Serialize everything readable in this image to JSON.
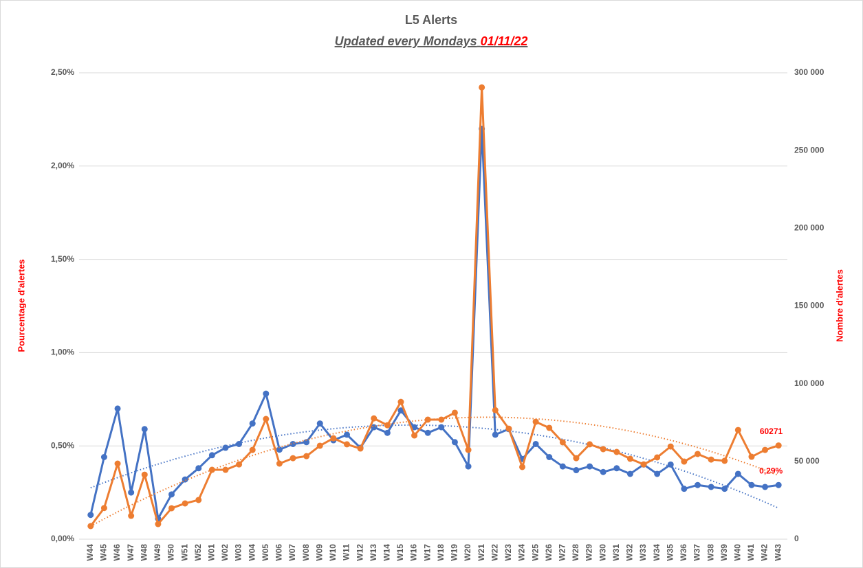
{
  "chart_data": {
    "type": "line",
    "title": "L5 Alerts",
    "subtitle": "Updated every Mondays",
    "subtitle_date": "01/11/22",
    "ylabel": "Pourcentage d'alertes",
    "y2label": "Nombre d'alertes",
    "categories": [
      "W44",
      "W45",
      "W46",
      "W47",
      "W48",
      "W49",
      "W50",
      "W51",
      "W52",
      "W01",
      "W02",
      "W03",
      "W04",
      "W05",
      "W06",
      "W07",
      "W08",
      "W09",
      "W10",
      "W11",
      "W12",
      "W13",
      "W14",
      "W15",
      "W16",
      "W17",
      "W18",
      "W19",
      "W20",
      "W21",
      "W22",
      "W23",
      "W24",
      "W25",
      "W26",
      "W27",
      "W28",
      "W29",
      "W30",
      "W31",
      "W32",
      "W33",
      "W34",
      "W35",
      "W36",
      "W37",
      "W38",
      "W39",
      "W40",
      "W41",
      "W42",
      "W43"
    ],
    "ylim": [
      0,
      2.5
    ],
    "yticks": [
      {
        "value": 0,
        "label": "0,00%"
      },
      {
        "value": 0.5,
        "label": "0,50%"
      },
      {
        "value": 1,
        "label": "1,00%"
      },
      {
        "value": 1.5,
        "label": "1,50%"
      },
      {
        "value": 2,
        "label": "2,00%"
      },
      {
        "value": 2.5,
        "label": "2,50%"
      }
    ],
    "y2lim": [
      0,
      300000
    ],
    "y2ticks": [
      0,
      {
        "value": 50000,
        "label": "50 000"
      },
      {
        "value": 100000,
        "label": "100 000"
      },
      {
        "value": 150000,
        "label": "150 000"
      },
      {
        "value": 200000,
        "label": "200 000"
      },
      {
        "value": 250000,
        "label": "250 000"
      },
      {
        "value": 300000,
        "label": "300 000"
      }
    ],
    "grid": true,
    "trendline": "polynomial",
    "series": [
      {
        "color": "#4472c4",
        "axis": "y",
        "values": [
          0.13,
          0.44,
          0.7,
          0.25,
          0.59,
          0.11,
          0.24,
          0.32,
          0.38,
          0.45,
          0.49,
          0.51,
          0.62,
          0.78,
          0.48,
          0.51,
          0.52,
          0.62,
          0.53,
          0.56,
          0.49,
          0.6,
          0.57,
          0.69,
          0.6,
          0.57,
          0.6,
          0.52,
          0.39,
          2.2,
          0.56,
          0.59,
          0.43,
          0.51,
          0.44,
          0.39,
          0.37,
          0.39,
          0.36,
          0.38,
          0.35,
          0.4,
          0.35,
          0.4,
          0.27,
          0.29,
          0.28,
          0.27,
          0.35,
          0.29,
          0.28,
          0.29
        ],
        "value_labels": [
          null,
          null,
          null,
          null,
          null,
          null,
          null,
          null,
          null,
          null,
          null,
          null,
          null,
          null,
          null,
          null,
          null,
          null,
          null,
          null,
          null,
          null,
          null,
          null,
          null,
          null,
          null,
          null,
          null,
          null,
          null,
          null,
          null,
          null,
          null,
          null,
          null,
          null,
          null,
          null,
          null,
          null,
          null,
          null,
          null,
          null,
          null,
          null,
          null,
          null,
          null,
          "0,29%"
        ]
      },
      {
        "color": "#ed7d31",
        "axis": "y2",
        "values": [
          8400,
          20000,
          48600,
          15000,
          41500,
          9700,
          19900,
          23000,
          25200,
          44600,
          44600,
          48100,
          57400,
          77300,
          48600,
          52100,
          53400,
          60100,
          64900,
          61000,
          58300,
          77700,
          73300,
          88300,
          66700,
          76900,
          76900,
          81300,
          57400,
          290600,
          83000,
          71100,
          46400,
          75500,
          71600,
          62300,
          52100,
          61000,
          57900,
          56100,
          51700,
          48100,
          52600,
          59600,
          49900,
          54800,
          51200,
          50400,
          70200,
          53000,
          57400,
          60271
        ],
        "value_labels": [
          null,
          null,
          null,
          null,
          null,
          null,
          null,
          null,
          null,
          null,
          null,
          null,
          null,
          null,
          null,
          null,
          null,
          null,
          null,
          null,
          null,
          null,
          null,
          null,
          null,
          null,
          null,
          null,
          null,
          null,
          null,
          null,
          null,
          null,
          null,
          null,
          null,
          null,
          null,
          null,
          null,
          null,
          null,
          null,
          null,
          null,
          null,
          null,
          null,
          null,
          null,
          "60271"
        ]
      }
    ]
  }
}
